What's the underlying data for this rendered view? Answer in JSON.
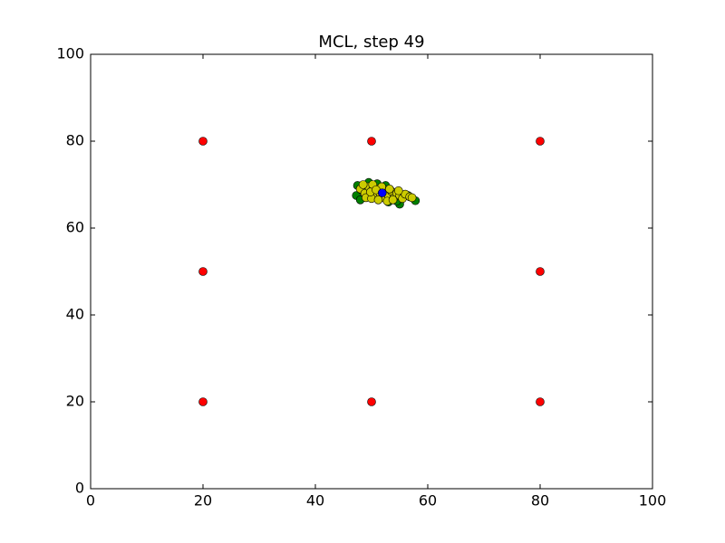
{
  "chart_data": {
    "type": "scatter",
    "title": "MCL, step 49",
    "xlim": [
      0,
      100
    ],
    "ylim": [
      0,
      100
    ],
    "xticks": [
      0,
      20,
      40,
      60,
      80,
      100
    ],
    "yticks": [
      0,
      20,
      40,
      60,
      80,
      100
    ],
    "grid": false,
    "series": [
      {
        "color": "#ff0000",
        "x": [
          20,
          50,
          80,
          20,
          80,
          20,
          50,
          80
        ],
        "values": [
          80,
          80,
          80,
          50,
          50,
          20,
          20,
          20
        ]
      },
      {
        "color": "#008000",
        "x": [
          47.5,
          47.3,
          48,
          57.8,
          55,
          53,
          49.5,
          51,
          56.5,
          48.2,
          52.5,
          54.5
        ],
        "values": [
          69.8,
          67.5,
          66.5,
          66.3,
          65.5,
          66,
          70.5,
          70.2,
          67.5,
          68.8,
          69.8,
          66.2
        ]
      },
      {
        "color": "#cccc00",
        "x": [
          48,
          48.8,
          49.5,
          50,
          50.5,
          51,
          51.5,
          52,
          52.5,
          53,
          53.5,
          54,
          54.5,
          55,
          55.5,
          56,
          56.8,
          49,
          50,
          51.2,
          52.8,
          53.8,
          48.5,
          50.2,
          51.8,
          53.2,
          54.8,
          49.8,
          57.2,
          50.8
        ],
        "values": [
          69,
          68,
          69.5,
          68.5,
          67.5,
          69,
          68,
          67,
          68.5,
          67.5,
          68.5,
          67,
          68,
          67.5,
          66.8,
          67.8,
          67.2,
          67,
          66.8,
          66.5,
          66.2,
          66.5,
          70,
          70,
          69.5,
          69,
          68.6,
          68.3,
          67,
          68.8
        ]
      },
      {
        "color": "#0000ff",
        "x": [
          51.9
        ],
        "values": [
          68.1
        ]
      }
    ]
  }
}
